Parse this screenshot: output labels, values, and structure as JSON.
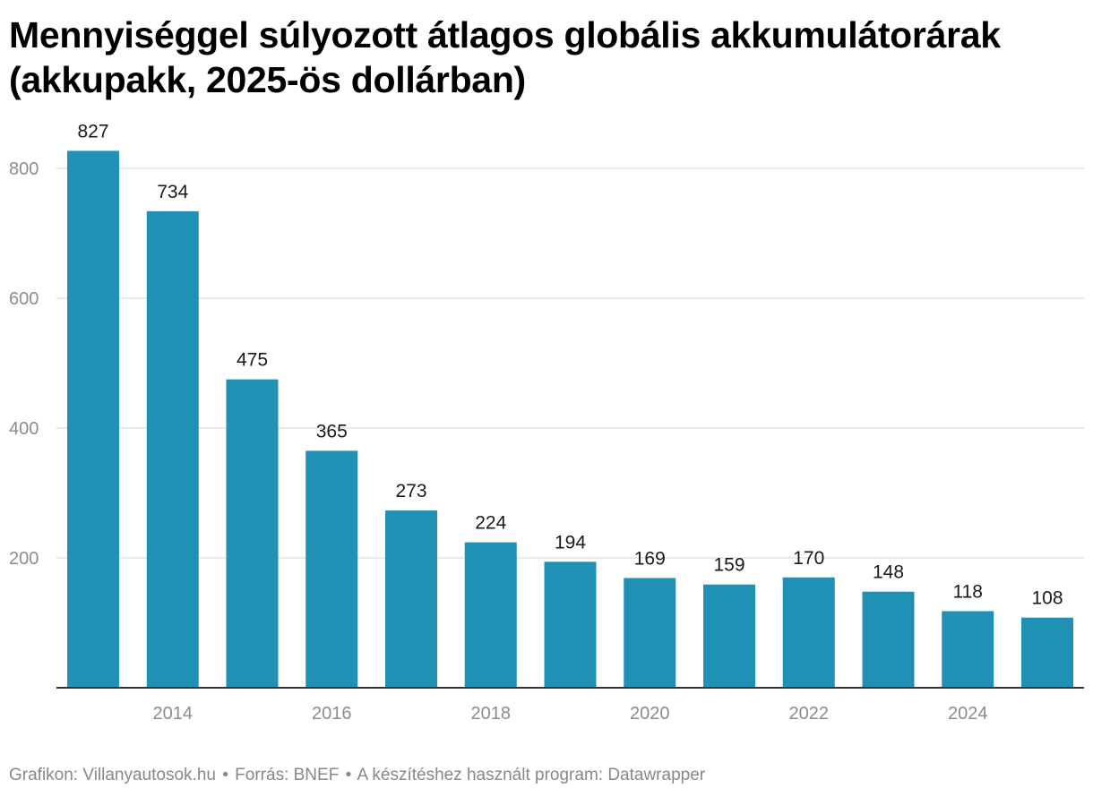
{
  "title": "Mennyiséggel súlyozott átlagos globális akkumulátorárak (akkupakk, 2025-ös dollárban)",
  "footer": {
    "credit": "Grafikon: Villanyautosok.hu",
    "source": "Forrás: BNEF",
    "tool": "A készítéshez használt program: Datawrapper",
    "separator": "•"
  },
  "chart_data": {
    "type": "bar",
    "title": "Mennyiséggel súlyozott átlagos globális akkumulátorárak (akkupakk, 2025-ös dollárban)",
    "categories": [
      "2013",
      "2014",
      "2015",
      "2016",
      "2017",
      "2018",
      "2019",
      "2020",
      "2021",
      "2022",
      "2023",
      "2024",
      "2025"
    ],
    "values": [
      827,
      734,
      475,
      365,
      273,
      224,
      194,
      169,
      159,
      170,
      148,
      118,
      108
    ],
    "x_tick_labels": [
      "2014",
      "2016",
      "2018",
      "2020",
      "2022",
      "2024"
    ],
    "y_ticks": [
      200,
      400,
      600,
      800
    ],
    "ylim": [
      0,
      850
    ],
    "xlabel": "",
    "ylabel": "",
    "grid": "horizontal",
    "legend": "none",
    "bar_color": "#2190b5",
    "gridline_color": "#e3e3e3",
    "axis_color": "#333333",
    "tick_label_color": "#8c8c8c",
    "value_label_color": "#1a1a1a"
  }
}
